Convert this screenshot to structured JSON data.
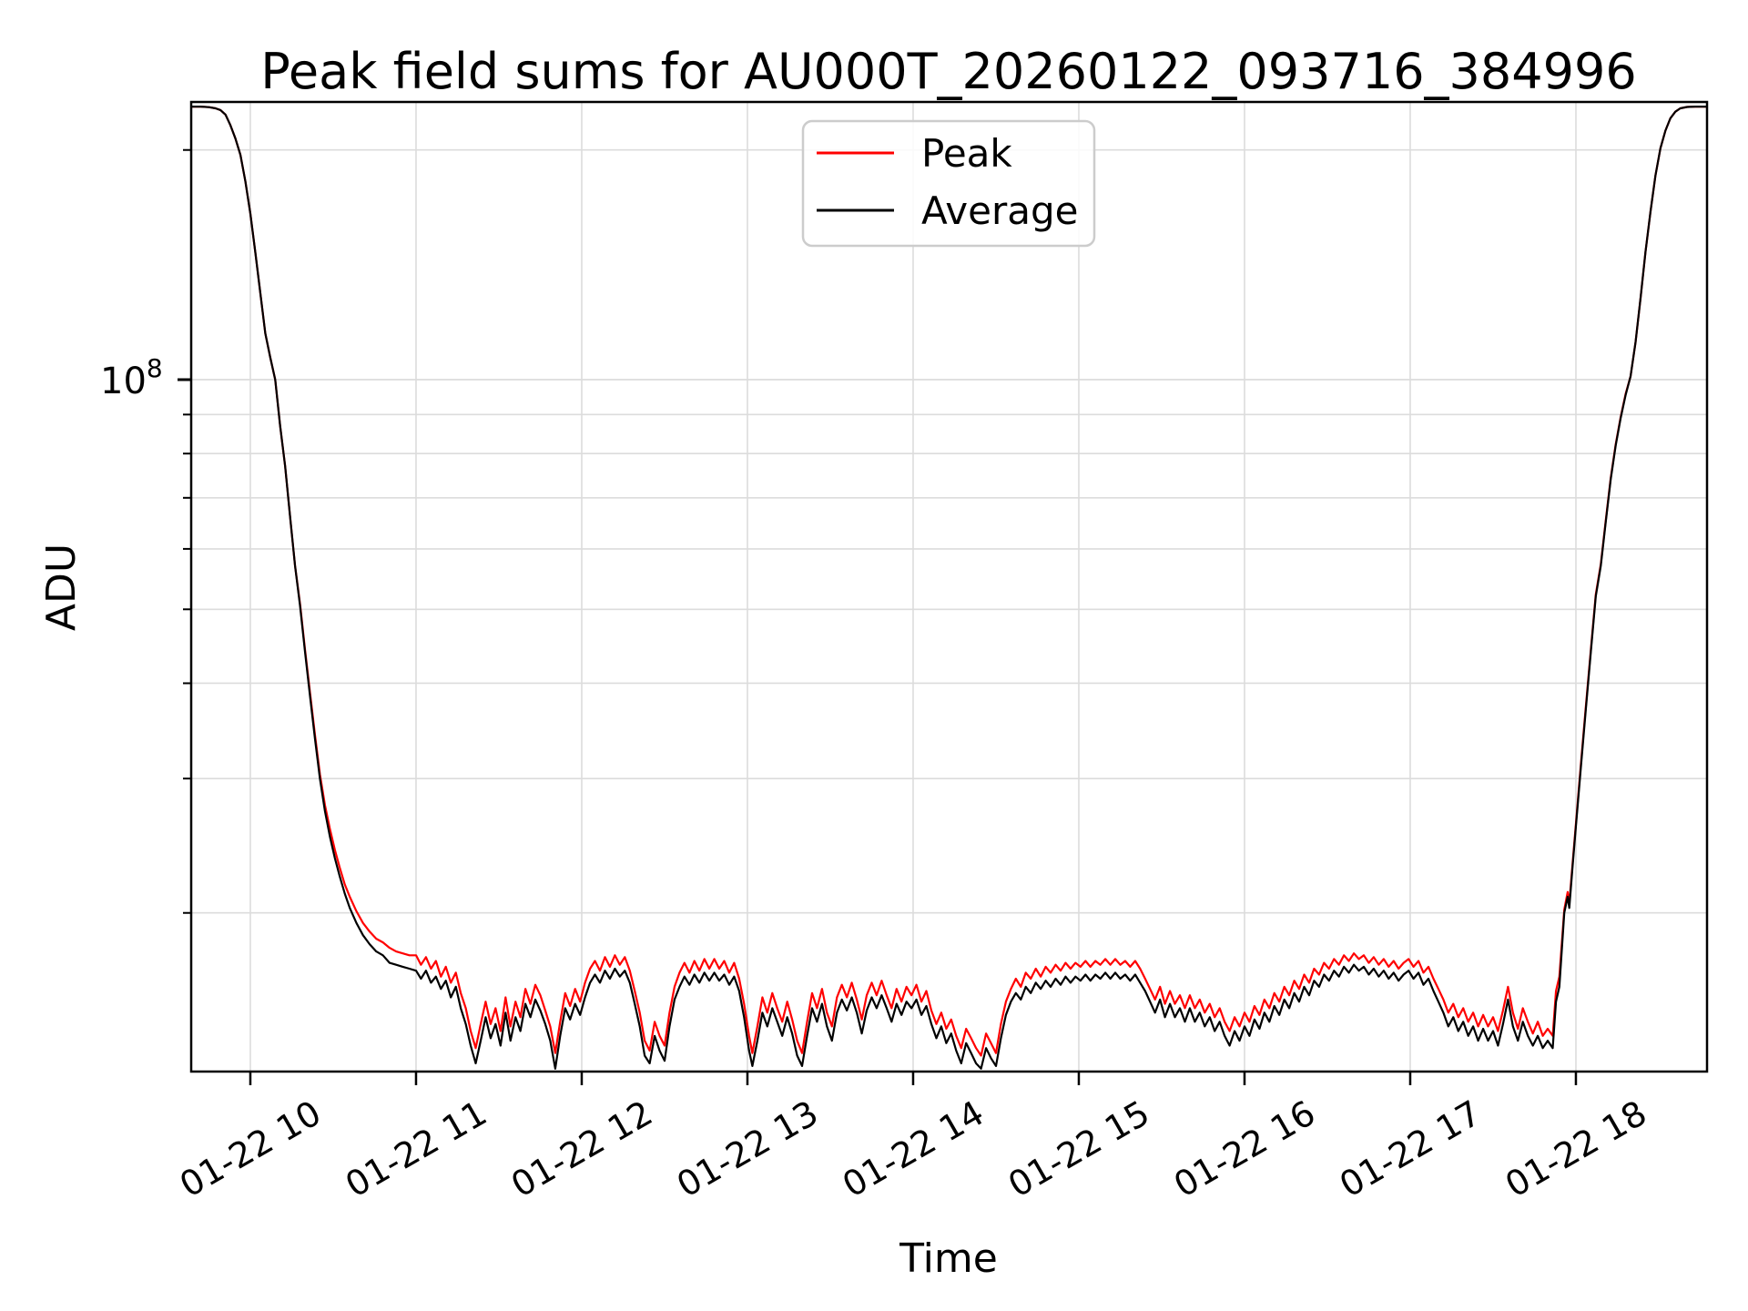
{
  "figure": {
    "title": "Peak field sums for AU000T_20260122_093716_384996",
    "background_color": "#ffffff",
    "grid_color": "#dcdcdc",
    "spine_color": "#000000"
  },
  "axes": {
    "xlabel": "Time",
    "ylabel": "ADU",
    "y_major_tick_label": {
      "base": "10",
      "exponent": "8"
    },
    "xtick_hours": [
      10,
      11,
      12,
      13,
      14,
      15,
      16,
      17,
      18
    ],
    "xtick_labels": [
      "01-22 10",
      "01-22 11",
      "01-22 12",
      "01-22 13",
      "01-22 14",
      "01-22 15",
      "01-22 16",
      "01-22 17",
      "01-22 18"
    ]
  },
  "legend": {
    "entries": [
      {
        "label": "Peak",
        "color": "#ff0000"
      },
      {
        "label": "Average",
        "color": "#000000"
      }
    ]
  },
  "chart_data": {
    "type": "line",
    "title": "Peak field sums for AU000T_20260122_093716_384996",
    "xlabel": "Time",
    "ylabel": "ADU",
    "x_unit": "hours_on_01-22",
    "x_range": [
      9.643,
      18.793
    ],
    "y_scale": "log",
    "y_range": [
      12400000.0,
      231000000.0
    ],
    "y_major_gridlines": [
      100000000.0
    ],
    "y_minor_gridlines": [
      20000000.0,
      30000000.0,
      40000000.0,
      50000000.0,
      60000000.0,
      70000000.0,
      80000000.0,
      90000000.0,
      200000000.0
    ],
    "grid": true,
    "legend_position": "upper center",
    "value_multiplier": 1000000,
    "point_format": [
      "time_hours",
      "peak_1e6_ADU",
      "average_1e6_ADU"
    ],
    "series": [
      {
        "name": "Peak",
        "color": "#ff0000",
        "value_index": 1
      },
      {
        "name": "Average",
        "color": "#000000",
        "value_index": 2
      }
    ],
    "points": [
      [
        9.64,
        228,
        228
      ],
      [
        9.7,
        228,
        228
      ],
      [
        9.75,
        227.6,
        227.6
      ],
      [
        9.79,
        226.8,
        226.8
      ],
      [
        9.82,
        225.6,
        225.6
      ],
      [
        9.85,
        222.5,
        222.5
      ],
      [
        9.88,
        215.5,
        215.5
      ],
      [
        9.91,
        207,
        207
      ],
      [
        9.94,
        197,
        197
      ],
      [
        9.97,
        182,
        182
      ],
      [
        10.0,
        165,
        165
      ],
      [
        10.03,
        147,
        147
      ],
      [
        10.06,
        130,
        130
      ],
      [
        10.09,
        115,
        115
      ],
      [
        10.12,
        107,
        107
      ],
      [
        10.15,
        100,
        100
      ],
      [
        10.18,
        87,
        87
      ],
      [
        10.21,
        77,
        77
      ],
      [
        10.24,
        66,
        66
      ],
      [
        10.27,
        57,
        57
      ],
      [
        10.3,
        50.8,
        50.5
      ],
      [
        10.33,
        44.3,
        44
      ],
      [
        10.36,
        38.9,
        38.5
      ],
      [
        10.39,
        34.2,
        33.8
      ],
      [
        10.42,
        30.4,
        30
      ],
      [
        10.45,
        27.7,
        27.2
      ],
      [
        10.48,
        25.8,
        25.2
      ],
      [
        10.51,
        24.2,
        23.6
      ],
      [
        10.54,
        22.9,
        22.3
      ],
      [
        10.57,
        21.8,
        21.2
      ],
      [
        10.6,
        21,
        20.3
      ],
      [
        10.64,
        20.1,
        19.4
      ],
      [
        10.68,
        19.4,
        18.7
      ],
      [
        10.72,
        18.9,
        18.2
      ],
      [
        10.76,
        18.5,
        17.8
      ],
      [
        10.8,
        18.3,
        17.6
      ],
      [
        10.84,
        18,
        17.2
      ],
      [
        10.88,
        17.8,
        17.1
      ],
      [
        10.92,
        17.7,
        17
      ],
      [
        10.96,
        17.6,
        16.9
      ],
      [
        11.0,
        17.6,
        16.8
      ],
      [
        11.03,
        17.1,
        16.4
      ],
      [
        11.06,
        17.5,
        16.8
      ],
      [
        11.09,
        16.9,
        16.2
      ],
      [
        11.12,
        17.3,
        16.5
      ],
      [
        11.15,
        16.5,
        15.9
      ],
      [
        11.18,
        17,
        16.3
      ],
      [
        11.21,
        16.2,
        15.5
      ],
      [
        11.24,
        16.7,
        16
      ],
      [
        11.27,
        15.7,
        15
      ],
      [
        11.3,
        15,
        14.3
      ],
      [
        11.33,
        14,
        13.4
      ],
      [
        11.36,
        13.3,
        12.7
      ],
      [
        11.39,
        14.3,
        13.6
      ],
      [
        11.42,
        15.3,
        14.6
      ],
      [
        11.45,
        14.3,
        13.7
      ],
      [
        11.48,
        15,
        14.3
      ],
      [
        11.51,
        14,
        13.4
      ],
      [
        11.54,
        15.5,
        14.8
      ],
      [
        11.57,
        14.2,
        13.6
      ],
      [
        11.6,
        15.3,
        14.6
      ],
      [
        11.63,
        14.6,
        14
      ],
      [
        11.66,
        15.9,
        15.2
      ],
      [
        11.69,
        15.2,
        14.6
      ],
      [
        11.72,
        16.1,
        15.4
      ],
      [
        11.75,
        15.6,
        14.9
      ],
      [
        11.78,
        14.9,
        14.3
      ],
      [
        11.81,
        14.2,
        13.6
      ],
      [
        11.84,
        13.1,
        12.5
      ],
      [
        11.87,
        14.4,
        13.8
      ],
      [
        11.9,
        15.7,
        15
      ],
      [
        11.93,
        15.1,
        14.5
      ],
      [
        11.96,
        15.9,
        15.2
      ],
      [
        11.99,
        15.3,
        14.7
      ],
      [
        12.02,
        16.2,
        15.5
      ],
      [
        12.05,
        16.9,
        16.2
      ],
      [
        12.08,
        17.3,
        16.6
      ],
      [
        12.11,
        16.8,
        16.2
      ],
      [
        12.14,
        17.5,
        16.8
      ],
      [
        12.17,
        17,
        16.4
      ],
      [
        12.2,
        17.6,
        16.9
      ],
      [
        12.23,
        17.1,
        16.5
      ],
      [
        12.26,
        17.5,
        16.8
      ],
      [
        12.29,
        16.8,
        16.2
      ],
      [
        12.32,
        15.8,
        15.2
      ],
      [
        12.35,
        14.8,
        14.2
      ],
      [
        12.38,
        13.6,
        13
      ],
      [
        12.41,
        13.2,
        12.7
      ],
      [
        12.44,
        14.4,
        13.8
      ],
      [
        12.47,
        13.8,
        13.2
      ],
      [
        12.5,
        13.4,
        12.8
      ],
      [
        12.53,
        14.8,
        14.2
      ],
      [
        12.56,
        16,
        15.4
      ],
      [
        12.59,
        16.7,
        16
      ],
      [
        12.62,
        17.2,
        16.5
      ],
      [
        12.65,
        16.7,
        16.1
      ],
      [
        12.68,
        17.3,
        16.6
      ],
      [
        12.71,
        16.8,
        16.2
      ],
      [
        12.74,
        17.4,
        16.7
      ],
      [
        12.77,
        16.9,
        16.3
      ],
      [
        12.8,
        17.4,
        16.7
      ],
      [
        12.83,
        16.9,
        16.3
      ],
      [
        12.86,
        17.3,
        16.6
      ],
      [
        12.89,
        16.7,
        16.1
      ],
      [
        12.92,
        17.2,
        16.5
      ],
      [
        12.95,
        16.4,
        15.8
      ],
      [
        12.98,
        15.2,
        14.6
      ],
      [
        13.01,
        13.8,
        13.2
      ],
      [
        13.03,
        13.1,
        12.6
      ],
      [
        13.06,
        14.2,
        13.6
      ],
      [
        13.09,
        15.5,
        14.8
      ],
      [
        13.12,
        14.8,
        14.2
      ],
      [
        13.15,
        15.7,
        15
      ],
      [
        13.18,
        15,
        14.4
      ],
      [
        13.21,
        14.4,
        13.8
      ],
      [
        13.24,
        15.3,
        14.6
      ],
      [
        13.27,
        14.5,
        13.9
      ],
      [
        13.3,
        13.6,
        13
      ],
      [
        13.33,
        13.1,
        12.6
      ],
      [
        13.36,
        14.4,
        13.8
      ],
      [
        13.39,
        15.7,
        15
      ],
      [
        13.42,
        15,
        14.4
      ],
      [
        13.45,
        15.9,
        15.2
      ],
      [
        13.48,
        14.8,
        14.2
      ],
      [
        13.51,
        14.2,
        13.6
      ],
      [
        13.54,
        15.5,
        14.8
      ],
      [
        13.57,
        16.1,
        15.4
      ],
      [
        13.6,
        15.5,
        14.9
      ],
      [
        13.63,
        16.2,
        15.5
      ],
      [
        13.66,
        15.4,
        14.8
      ],
      [
        13.69,
        14.5,
        13.9
      ],
      [
        13.72,
        15.6,
        14.9
      ],
      [
        13.75,
        16.2,
        15.5
      ],
      [
        13.78,
        15.6,
        15
      ],
      [
        13.81,
        16.3,
        15.6
      ],
      [
        13.84,
        15.6,
        15
      ],
      [
        13.87,
        15,
        14.4
      ],
      [
        13.9,
        15.9,
        15.2
      ],
      [
        13.93,
        15.3,
        14.7
      ],
      [
        13.96,
        16,
        15.3
      ],
      [
        13.99,
        15.6,
        15
      ],
      [
        14.02,
        16.1,
        15.4
      ],
      [
        14.05,
        15.3,
        14.7
      ],
      [
        14.08,
        15.8,
        15.1
      ],
      [
        14.11,
        14.9,
        14.3
      ],
      [
        14.14,
        14.3,
        13.7
      ],
      [
        14.17,
        14.8,
        14.2
      ],
      [
        14.2,
        14.1,
        13.5
      ],
      [
        14.23,
        14.5,
        13.9
      ],
      [
        14.26,
        13.8,
        13.2
      ],
      [
        14.29,
        13.3,
        12.7
      ],
      [
        14.32,
        14.1,
        13.5
      ],
      [
        14.35,
        13.7,
        13.1
      ],
      [
        14.38,
        13.3,
        12.7
      ],
      [
        14.41,
        13,
        12.5
      ],
      [
        14.44,
        13.9,
        13.3
      ],
      [
        14.47,
        13.5,
        12.9
      ],
      [
        14.5,
        13.1,
        12.6
      ],
      [
        14.53,
        14.3,
        13.7
      ],
      [
        14.56,
        15.3,
        14.7
      ],
      [
        14.59,
        15.9,
        15.3
      ],
      [
        14.62,
        16.4,
        15.7
      ],
      [
        14.65,
        16,
        15.4
      ],
      [
        14.68,
        16.7,
        16
      ],
      [
        14.71,
        16.4,
        15.7
      ],
      [
        14.74,
        16.9,
        16.2
      ],
      [
        14.77,
        16.5,
        15.9
      ],
      [
        14.8,
        17,
        16.3
      ],
      [
        14.83,
        16.7,
        16
      ],
      [
        14.86,
        17.1,
        16.4
      ],
      [
        14.89,
        16.8,
        16.1
      ],
      [
        14.92,
        17.2,
        16.5
      ],
      [
        14.95,
        16.9,
        16.2
      ],
      [
        14.98,
        17.2,
        16.5
      ],
      [
        15.01,
        17,
        16.3
      ],
      [
        15.04,
        17.3,
        16.6
      ],
      [
        15.07,
        17,
        16.3
      ],
      [
        15.1,
        17.3,
        16.6
      ],
      [
        15.13,
        17.1,
        16.4
      ],
      [
        15.16,
        17.4,
        16.7
      ],
      [
        15.19,
        17.1,
        16.4
      ],
      [
        15.22,
        17.4,
        16.7
      ],
      [
        15.25,
        17.1,
        16.4
      ],
      [
        15.28,
        17.3,
        16.6
      ],
      [
        15.31,
        17,
        16.3
      ],
      [
        15.34,
        17.3,
        16.6
      ],
      [
        15.37,
        16.9,
        16.2
      ],
      [
        15.4,
        16.4,
        15.8
      ],
      [
        15.43,
        15.9,
        15.3
      ],
      [
        15.46,
        15.4,
        14.8
      ],
      [
        15.49,
        16,
        15.4
      ],
      [
        15.52,
        15.2,
        14.6
      ],
      [
        15.55,
        15.8,
        15.2
      ],
      [
        15.58,
        15.2,
        14.6
      ],
      [
        15.61,
        15.6,
        15
      ],
      [
        15.64,
        15,
        14.4
      ],
      [
        15.67,
        15.6,
        15
      ],
      [
        15.7,
        15,
        14.4
      ],
      [
        15.73,
        15.4,
        14.8
      ],
      [
        15.76,
        14.8,
        14.2
      ],
      [
        15.79,
        15.2,
        14.6
      ],
      [
        15.82,
        14.6,
        14
      ],
      [
        15.85,
        15,
        14.4
      ],
      [
        15.88,
        14.4,
        13.8
      ],
      [
        15.91,
        14,
        13.4
      ],
      [
        15.94,
        14.6,
        14
      ],
      [
        15.97,
        14.2,
        13.6
      ],
      [
        16.0,
        14.8,
        14.2
      ],
      [
        16.03,
        14.4,
        13.8
      ],
      [
        16.06,
        15.1,
        14.5
      ],
      [
        16.09,
        14.7,
        14.1
      ],
      [
        16.12,
        15.4,
        14.8
      ],
      [
        16.15,
        15,
        14.4
      ],
      [
        16.18,
        15.7,
        15.1
      ],
      [
        16.21,
        15.3,
        14.7
      ],
      [
        16.24,
        16,
        15.4
      ],
      [
        16.27,
        15.6,
        15
      ],
      [
        16.3,
        16.3,
        15.7
      ],
      [
        16.33,
        15.9,
        15.3
      ],
      [
        16.36,
        16.6,
        16
      ],
      [
        16.39,
        16.2,
        15.6
      ],
      [
        16.42,
        16.9,
        16.3
      ],
      [
        16.45,
        16.6,
        16
      ],
      [
        16.48,
        17.2,
        16.6
      ],
      [
        16.51,
        16.9,
        16.3
      ],
      [
        16.54,
        17.4,
        16.8
      ],
      [
        16.57,
        17.1,
        16.5
      ],
      [
        16.6,
        17.6,
        17
      ],
      [
        16.63,
        17.3,
        16.7
      ],
      [
        16.66,
        17.7,
        17.1
      ],
      [
        16.69,
        17.4,
        16.8
      ],
      [
        16.72,
        17.6,
        17
      ],
      [
        16.75,
        17.2,
        16.6
      ],
      [
        16.78,
        17.5,
        16.9
      ],
      [
        16.81,
        17.1,
        16.5
      ],
      [
        16.84,
        17.4,
        16.8
      ],
      [
        16.87,
        17,
        16.4
      ],
      [
        16.9,
        17.3,
        16.7
      ],
      [
        16.93,
        16.9,
        16.3
      ],
      [
        16.96,
        17.2,
        16.6
      ],
      [
        16.99,
        17.4,
        16.8
      ],
      [
        17.02,
        17,
        16.4
      ],
      [
        17.05,
        17.3,
        16.7
      ],
      [
        17.08,
        16.7,
        16.1
      ],
      [
        17.11,
        17,
        16.4
      ],
      [
        17.14,
        16.4,
        15.8
      ],
      [
        17.17,
        15.9,
        15.3
      ],
      [
        17.2,
        15.4,
        14.8
      ],
      [
        17.23,
        14.8,
        14.2
      ],
      [
        17.26,
        15.2,
        14.6
      ],
      [
        17.29,
        14.6,
        14
      ],
      [
        17.32,
        15,
        14.4
      ],
      [
        17.35,
        14.4,
        13.8
      ],
      [
        17.38,
        14.8,
        14.2
      ],
      [
        17.41,
        14.2,
        13.6
      ],
      [
        17.44,
        14.7,
        14.1
      ],
      [
        17.47,
        14.2,
        13.6
      ],
      [
        17.5,
        14.6,
        14
      ],
      [
        17.53,
        14,
        13.4
      ],
      [
        17.56,
        14.9,
        14.3
      ],
      [
        17.59,
        16,
        15.4
      ],
      [
        17.62,
        14.8,
        14.2
      ],
      [
        17.65,
        14.1,
        13.6
      ],
      [
        17.68,
        15,
        14.4
      ],
      [
        17.71,
        14.4,
        13.8
      ],
      [
        17.74,
        13.9,
        13.4
      ],
      [
        17.77,
        14.4,
        13.8
      ],
      [
        17.8,
        13.8,
        13.3
      ],
      [
        17.83,
        14.1,
        13.6
      ],
      [
        17.86,
        13.8,
        13.3
      ],
      [
        17.88,
        15.8,
        15.3
      ],
      [
        17.9,
        16.5,
        16
      ],
      [
        17.93,
        20.2,
        20
      ],
      [
        17.95,
        21.3,
        21
      ],
      [
        17.96,
        20.6,
        20.3
      ],
      [
        17.98,
        23.2,
        23
      ],
      [
        18.0,
        26.2,
        26
      ],
      [
        18.03,
        31.3,
        31
      ],
      [
        18.06,
        37.3,
        37
      ],
      [
        18.09,
        44.3,
        44
      ],
      [
        18.12,
        52.3,
        52
      ],
      [
        18.15,
        57.3,
        57
      ],
      [
        18.18,
        65.3,
        65
      ],
      [
        18.21,
        74.3,
        74
      ],
      [
        18.24,
        82.3,
        82
      ],
      [
        18.27,
        89.3,
        89
      ],
      [
        18.3,
        95.8,
        95.5
      ],
      [
        18.33,
        101,
        101
      ],
      [
        18.36,
        112,
        112
      ],
      [
        18.39,
        128,
        128
      ],
      [
        18.42,
        147,
        147
      ],
      [
        18.45,
        166,
        166
      ],
      [
        18.48,
        185,
        185
      ],
      [
        18.51,
        201,
        201
      ],
      [
        18.54,
        212,
        212
      ],
      [
        18.57,
        220,
        220
      ],
      [
        18.6,
        224.5,
        224.5
      ],
      [
        18.63,
        226.8,
        226.8
      ],
      [
        18.67,
        227.7,
        227.7
      ],
      [
        18.72,
        228,
        228
      ],
      [
        18.79,
        228,
        228
      ]
    ]
  }
}
